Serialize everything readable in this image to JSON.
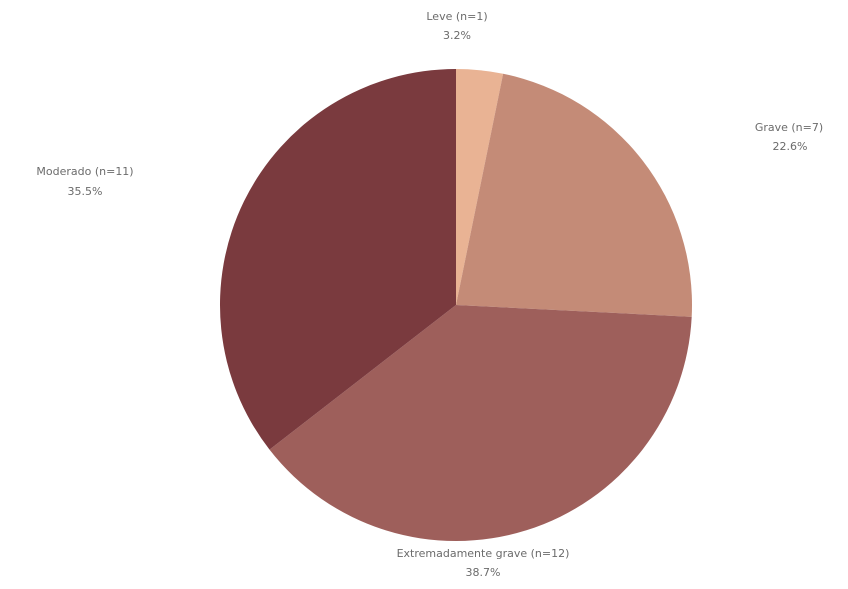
{
  "chart_data": {
    "type": "pie",
    "title": "",
    "start_angle_deg": 0,
    "direction": "clockwise",
    "slices": [
      {
        "name": "Leve (n=1)",
        "count": 1,
        "percent_label": "3.2%",
        "value": 3.2,
        "color": "#e9b394"
      },
      {
        "name": "Grave (n=7)",
        "count": 7,
        "percent_label": "22.6%",
        "value": 22.6,
        "color": "#c48b77"
      },
      {
        "name": "Extremadamente grave (n=12)",
        "count": 12,
        "percent_label": "38.7%",
        "value": 38.7,
        "color": "#9e5f5b"
      },
      {
        "name": "Moderado (n=11)",
        "count": 11,
        "percent_label": "35.5%",
        "value": 35.5,
        "color": "#7a3a3e"
      }
    ]
  }
}
